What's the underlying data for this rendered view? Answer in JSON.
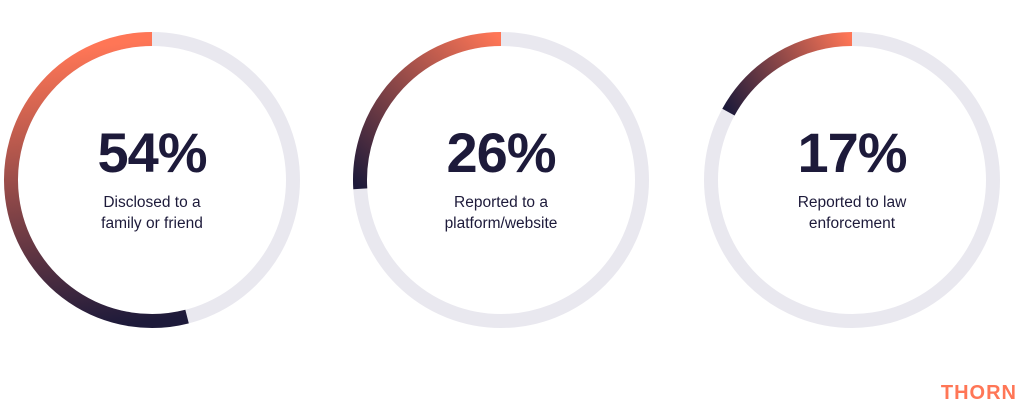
{
  "chart_data": [
    {
      "type": "gauge",
      "values": [
        54
      ],
      "value_labels": [
        "54%"
      ],
      "categories": [
        "Disclosed to a family or friend"
      ],
      "color": "#ff7656",
      "color_end": "#1d1a3a",
      "track_color": "#e9e8ef"
    },
    {
      "type": "gauge",
      "values": [
        26
      ],
      "value_labels": [
        "26%"
      ],
      "categories": [
        "Reported to a platform/website"
      ],
      "color": "#ff7656",
      "color_end": "#1d1a3a",
      "track_color": "#e9e8ef"
    },
    {
      "type": "gauge",
      "values": [
        17
      ],
      "value_labels": [
        "17%"
      ],
      "categories": [
        "Reported to law enforcement"
      ],
      "color": "#ff7656",
      "color_end": "#1d1a3a",
      "track_color": "#e9e8ef"
    }
  ],
  "brand": "THORN"
}
